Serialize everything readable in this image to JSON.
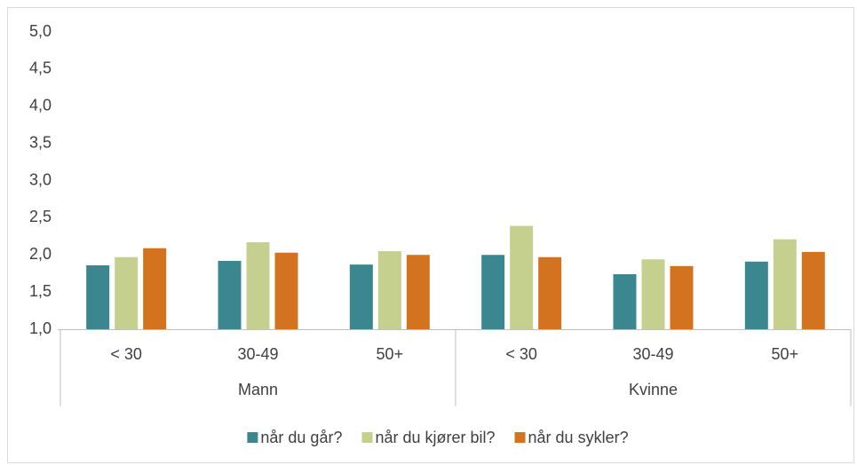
{
  "chart_data": {
    "type": "bar",
    "groups": [
      "Mann",
      "Kvinne"
    ],
    "categories": [
      "< 30",
      "30-49",
      "50+",
      "< 30",
      "30-49",
      "50+"
    ],
    "series": [
      {
        "name": "når du går?",
        "color": "#3a878f",
        "values": [
          1.86,
          1.92,
          1.87,
          2.0,
          1.74,
          1.91
        ]
      },
      {
        "name": "når du kjører bil?",
        "color": "#c5cf8e",
        "values": [
          1.97,
          2.17,
          2.05,
          2.39,
          1.94,
          2.21
        ]
      },
      {
        "name": "når du sykler?",
        "color": "#d4731f",
        "values": [
          2.09,
          2.03,
          2.0,
          1.97,
          1.85,
          2.04
        ]
      }
    ],
    "ylim": [
      1.0,
      5.0
    ],
    "yticks": [
      {
        "value": 1.0,
        "label": "1,0"
      },
      {
        "value": 1.5,
        "label": "1,5"
      },
      {
        "value": 2.0,
        "label": "2,0"
      },
      {
        "value": 2.5,
        "label": "2,5"
      },
      {
        "value": 3.0,
        "label": "3,0"
      },
      {
        "value": 3.5,
        "label": "3,5"
      },
      {
        "value": 4.0,
        "label": "4,0"
      },
      {
        "value": 4.5,
        "label": "4,5"
      },
      {
        "value": 5.0,
        "label": "5,0"
      }
    ],
    "grid": false,
    "legend": "bottom"
  }
}
